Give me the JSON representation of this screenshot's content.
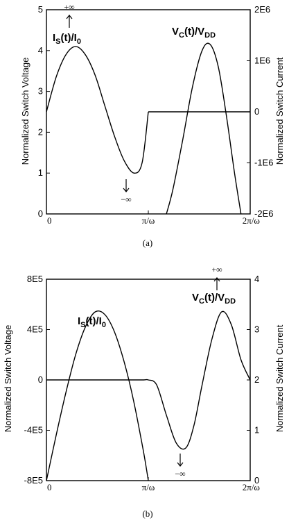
{
  "chart_data": [
    {
      "type": "line",
      "caption": "(a)",
      "ylabel_left": "Normalized Switch Voltage",
      "ylabel_right": "Normalized Switch Current",
      "x_ticks": [
        "0",
        "π/ω",
        "2π/ω"
      ],
      "xlim": [
        0,
        6.2832
      ],
      "ylim_left": [
        0,
        5
      ],
      "y_ticks_left": [
        "0",
        "1",
        "2",
        "3",
        "4",
        "5"
      ],
      "ylim_right": [
        -2000000,
        2000000
      ],
      "y_ticks_right": [
        "-2E6",
        "-1E6",
        "0",
        "1E6",
        "2E6"
      ],
      "series": [
        {
          "name": "I_S(t)/I_0",
          "axis": "left",
          "x": [
            0,
            0.3,
            0.6,
            0.9,
            1.2,
            1.5,
            1.8,
            2.1,
            2.4,
            2.7,
            2.95,
            3.1416
          ],
          "y": [
            2.5,
            3.35,
            3.9,
            4.1,
            3.9,
            3.4,
            2.65,
            1.9,
            1.3,
            1.0,
            1.25,
            2.5
          ]
        },
        {
          "name": "V_C(t)/V_DD",
          "axis": "right",
          "x": [
            3.1416,
            3.5,
            3.8,
            4.1,
            4.4,
            4.7,
            5.0,
            5.3,
            5.6,
            5.9,
            6.2832
          ],
          "y": [
            0,
            0,
            0,
            0,
            0,
            0,
            0,
            0,
            0,
            0,
            0
          ]
        },
        {
          "name": "V_C(t)/V_DD curve",
          "axis": "left",
          "x": [
            3.7,
            3.9,
            4.2,
            4.5,
            4.8,
            5.05,
            5.3,
            5.55,
            5.8,
            6.0
          ],
          "y": [
            0,
            0.6,
            1.8,
            3.1,
            4.0,
            4.15,
            3.6,
            2.4,
            1.0,
            0
          ]
        }
      ],
      "labels": {
        "is": {
          "main": "I",
          "sub1": "S",
          "mid": "(t)/I",
          "sub2": "0"
        },
        "vc": {
          "main": "V",
          "sub1": "C",
          "mid": "(t)/V",
          "sub2": "DD"
        }
      },
      "annotations": {
        "top": "+∞",
        "bottom": "−∞"
      }
    },
    {
      "type": "line",
      "caption": "(b)",
      "ylabel_left": "Normalized Switch Voltage",
      "ylabel_right": "Normalized Switch Current",
      "x_ticks": [
        "0",
        "π/ω",
        "2π/ω"
      ],
      "xlim": [
        0,
        6.2832
      ],
      "ylim_left": [
        -800000,
        800000
      ],
      "y_ticks_left": [
        "-8E5",
        "-4E5",
        "0",
        "4E5",
        "8E5"
      ],
      "ylim_right": [
        0,
        4
      ],
      "y_ticks_right": [
        "0",
        "1",
        "2",
        "3",
        "4"
      ],
      "series": [
        {
          "name": "I_S(t)/I_0",
          "axis": "right",
          "x": [
            0,
            0.3,
            0.6,
            0.9,
            1.2,
            1.5,
            1.8,
            2.1,
            2.4,
            2.7,
            3.0,
            3.1416
          ],
          "y": [
            0,
            0.9,
            1.75,
            2.5,
            3.05,
            3.35,
            3.3,
            2.95,
            2.35,
            1.55,
            0.55,
            0
          ]
        },
        {
          "name": "V_C(t)/V_DD",
          "axis": "right",
          "x": [
            0,
            0.5,
            1.0,
            1.5,
            2.0,
            2.5,
            3.0,
            3.1416,
            3.4,
            3.7,
            4.0,
            4.3,
            4.55,
            4.8,
            5.1,
            5.4,
            5.7,
            6.0,
            6.2832
          ],
          "y": [
            2,
            2,
            2,
            2,
            2,
            2,
            2,
            2,
            1.9,
            1.3,
            0.75,
            0.65,
            1.1,
            1.9,
            2.8,
            3.35,
            3.1,
            2.4,
            2.0
          ]
        }
      ],
      "labels": {
        "is": {
          "main": "I",
          "sub1": "S",
          "mid": "(t)/I",
          "sub2": "0"
        },
        "vc": {
          "main": "V",
          "sub1": "C",
          "mid": "(t)/V",
          "sub2": "DD"
        }
      },
      "annotations": {
        "top": "+∞",
        "bottom": "−∞"
      }
    }
  ]
}
